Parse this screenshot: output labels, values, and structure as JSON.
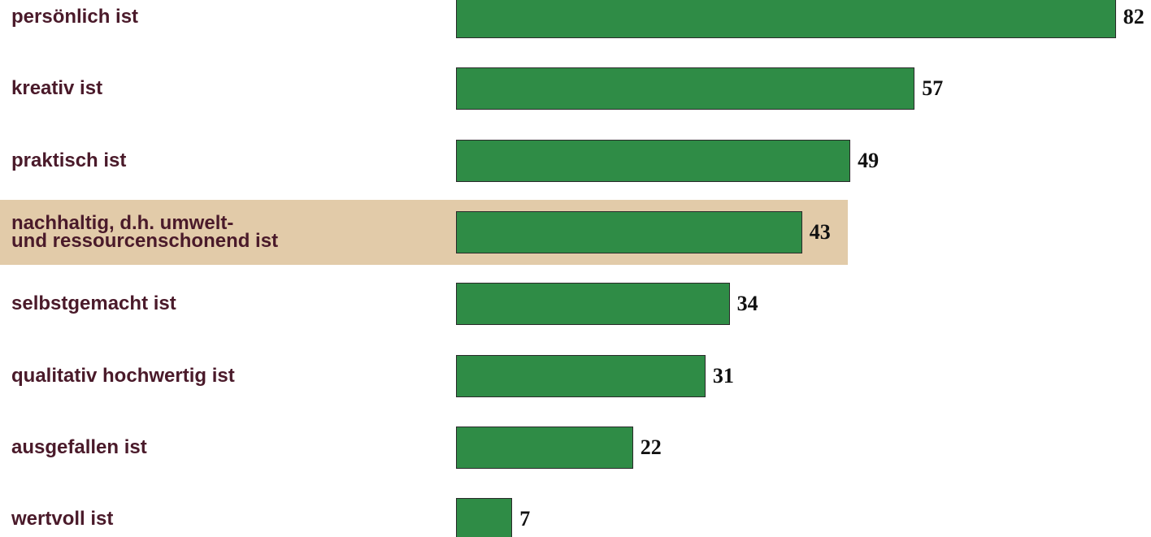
{
  "chart_data": {
    "type": "bar",
    "orientation": "horizontal",
    "categories": [
      "persönlich ist",
      "kreativ ist",
      "praktisch ist",
      "nachhaltig, d.h. umwelt-\nund ressourcenschonend ist",
      "selbstgemacht ist",
      "qualitativ hochwertig ist",
      "ausgefallen ist",
      "wertvoll ist"
    ],
    "values": [
      82,
      57,
      49,
      43,
      34,
      31,
      22,
      7
    ],
    "color": "#2f8c46",
    "highlight": {
      "index": 3,
      "color": "#e2cba9"
    }
  }
}
